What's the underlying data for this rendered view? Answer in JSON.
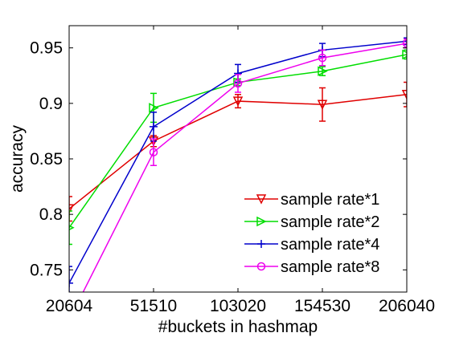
{
  "chart_data": {
    "type": "line",
    "title": "",
    "xlabel": "#buckets in hashmap",
    "ylabel": "accuracy",
    "categories": [
      "20604",
      "51510",
      "103020",
      "154530",
      "206040"
    ],
    "x_positions": [
      1,
      2,
      3,
      4,
      5
    ],
    "xlim": [
      1,
      5
    ],
    "ylim": [
      0.73,
      0.97
    ],
    "yticks": [
      0.75,
      0.8,
      0.85,
      0.9,
      0.95
    ],
    "ytick_labels": [
      "0.75",
      "0.8",
      "0.85",
      "0.9",
      "0.95"
    ],
    "grid": false,
    "legend_position": "bottom-right",
    "series": [
      {
        "name": "sample rate*1",
        "color": "#e00000",
        "marker": "triangle-down",
        "values": [
          0.805,
          0.866,
          0.902,
          0.899,
          0.908
        ],
        "errors": [
          0.011,
          0.005,
          0.006,
          0.015,
          0.011
        ]
      },
      {
        "name": "sample rate*2",
        "color": "#00dd00",
        "marker": "triangle-right",
        "values": [
          0.788,
          0.896,
          0.919,
          0.929,
          0.944
        ],
        "errors": [
          0.015,
          0.013,
          0.003,
          0.004,
          0.004
        ]
      },
      {
        "name": "sample rate*4",
        "color": "#0000cc",
        "marker": "plus",
        "values": [
          0.738,
          0.879,
          0.927,
          0.948,
          0.956
        ],
        "errors": [
          0.015,
          0.013,
          0.008,
          0.006,
          0.003
        ]
      },
      {
        "name": "sample rate*8",
        "color": "#ee00ee",
        "marker": "circle",
        "values": [
          0.705,
          0.856,
          0.918,
          0.941,
          0.954
        ],
        "errors": [
          0.01,
          0.012,
          0.008,
          0.007,
          0.004
        ]
      }
    ]
  }
}
